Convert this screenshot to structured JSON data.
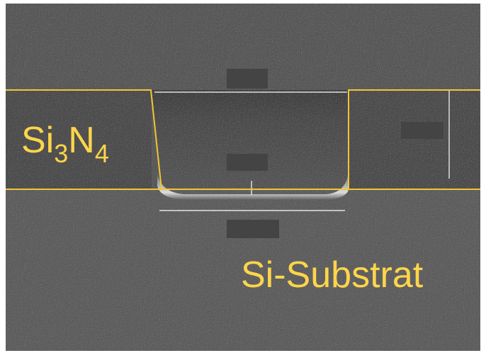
{
  "layer_label": {
    "parts": [
      "Si",
      "3",
      "N",
      "4"
    ]
  },
  "substrate_label": "Si-Substrat"
}
